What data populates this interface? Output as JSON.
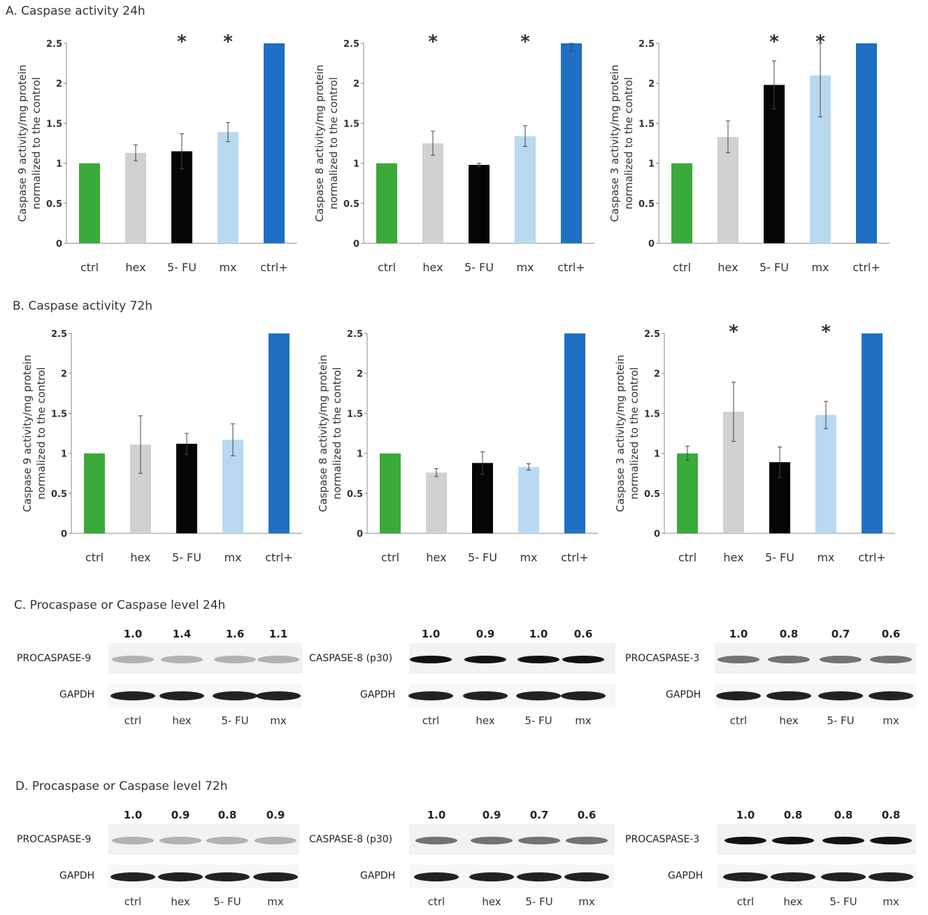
{
  "sections": {
    "a": "A. Caspase activity 24h",
    "b": "B. Caspase  activity 72h",
    "c": "C. Procaspase or Caspase level 24h",
    "d": "D. Procaspase  or Caspase level 72h"
  },
  "colors": {
    "ctrl": "#3aaa3a",
    "hex": "#d3d1d0",
    "fu": "#050505",
    "mx": "#b9d9f0",
    "ctrl_plus": "#1f6fc5"
  },
  "chart_data": [
    {
      "id": "a1",
      "type": "bar",
      "title": "",
      "ylabel_line1": "Caspase 9 activity/mg protein",
      "ylabel_line2": "normalized to the control",
      "categories": [
        "ctrl",
        "hex",
        "5- FU",
        "mx",
        "ctrl+"
      ],
      "values": [
        1.0,
        1.13,
        1.15,
        1.39,
        2.5
      ],
      "errors": [
        0,
        0.1,
        0.22,
        0.12,
        0
      ],
      "sig": [
        "",
        "",
        "*",
        "*",
        ""
      ],
      "ylim": [
        0,
        2.5
      ],
      "yticks": [
        "0",
        "0.5",
        "1",
        "1.5",
        "2",
        "2.5"
      ]
    },
    {
      "id": "a2",
      "type": "bar",
      "title": "",
      "ylabel_line1": "Caspase 8 activity/mg protein",
      "ylabel_line2": "normalized to the control",
      "categories": [
        "ctrl",
        "hex",
        "5- FU",
        "mx",
        "ctrl+"
      ],
      "values": [
        1.0,
        1.25,
        0.98,
        1.34,
        2.5
      ],
      "errors": [
        0,
        0.15,
        0.02,
        0.13,
        0.1
      ],
      "sig": [
        "",
        "*",
        "",
        "*",
        ""
      ],
      "ylim": [
        0,
        2.5
      ],
      "yticks": [
        "0",
        "0.5",
        "1",
        "1.5",
        "2",
        "2.5"
      ]
    },
    {
      "id": "a3",
      "type": "bar",
      "title": "",
      "ylabel_line1": "Caspase 3 activity/mg protein",
      "ylabel_line2": "normalized to the control",
      "categories": [
        "ctrl",
        "hex",
        "5- FU",
        "mx",
        "ctrl+"
      ],
      "values": [
        1.0,
        1.33,
        1.98,
        2.1,
        2.5
      ],
      "errors": [
        0,
        0.2,
        0.3,
        0.52,
        0
      ],
      "sig": [
        "",
        "",
        "*",
        "*",
        ""
      ],
      "ylim": [
        0,
        2.5
      ],
      "yticks": [
        "0",
        "0.5",
        "1",
        "1.5",
        "2",
        "2.5"
      ]
    },
    {
      "id": "b1",
      "type": "bar",
      "title": "",
      "ylabel_line1": "Caspase 9 activity/mg protein",
      "ylabel_line2": "normalized to the control",
      "categories": [
        "ctrl",
        "hex",
        "5- FU",
        "mx",
        "ctrl+"
      ],
      "values": [
        1.0,
        1.11,
        1.12,
        1.17,
        2.5
      ],
      "errors": [
        0,
        0.36,
        0.13,
        0.2,
        0
      ],
      "sig": [
        "",
        "",
        "",
        "",
        ""
      ],
      "ylim": [
        0,
        2.5
      ],
      "yticks": [
        "0",
        "0.5",
        "1",
        "1.5",
        "2",
        "2.5"
      ]
    },
    {
      "id": "b2",
      "type": "bar",
      "title": "",
      "ylabel_line1": "Caspase 8 activity/mg protein",
      "ylabel_line2": "normalized to the control",
      "categories": [
        "ctrl",
        "hex",
        "5- FU",
        "mx",
        "ctrl+"
      ],
      "values": [
        1.0,
        0.76,
        0.88,
        0.83,
        2.5
      ],
      "errors": [
        0,
        0.05,
        0.14,
        0.04,
        0
      ],
      "sig": [
        "",
        "",
        "",
        "",
        ""
      ],
      "ylim": [
        0,
        2.5
      ],
      "yticks": [
        "0",
        "0.5",
        "1",
        "1.5",
        "2",
        "2.5"
      ]
    },
    {
      "id": "b3",
      "type": "bar",
      "title": "",
      "ylabel_line1": "Caspase 3 activity/mg protein",
      "ylabel_line2": "normalized to the control",
      "categories": [
        "ctrl",
        "hex",
        "5- FU",
        "mx",
        "ctrl+"
      ],
      "values": [
        1.0,
        1.52,
        0.89,
        1.48,
        2.5
      ],
      "errors": [
        0.09,
        0.37,
        0.19,
        0.17,
        0
      ],
      "sig": [
        "",
        "*",
        "",
        "*",
        ""
      ],
      "ylim": [
        0,
        2.5
      ],
      "yticks": [
        "0",
        "0.5",
        "1",
        "1.5",
        "2",
        "2.5"
      ]
    }
  ],
  "blots": {
    "lanes": [
      "ctrl",
      "hex",
      "5- FU",
      "mx"
    ],
    "c1": {
      "label": "PROCASPASE-9",
      "densities": [
        "1.0",
        "1.4",
        "1.6",
        "1.1"
      ],
      "gapdh": "GAPDH"
    },
    "c2": {
      "label": "CASPASE-8 (p30)",
      "densities": [
        "1.0",
        "0.9",
        "1.0",
        "0.6"
      ],
      "gapdh": "GAPDH"
    },
    "c3": {
      "label": "PROCASPASE-3",
      "densities": [
        "1.0",
        "0.8",
        "0.7",
        "0.6"
      ],
      "gapdh": "GAPDH"
    },
    "d1": {
      "label": "PROCASPASE-9",
      "densities": [
        "1.0",
        "0.9",
        "0.8",
        "0.9"
      ],
      "gapdh": "GAPDH"
    },
    "d2": {
      "label": "CASPASE-8 (p30)",
      "densities": [
        "1.0",
        "0.9",
        "0.7",
        "0.6"
      ],
      "gapdh": "GAPDH"
    },
    "d3": {
      "label": "PROCASPASE-3",
      "densities": [
        "1.0",
        "0.8",
        "0.8",
        "0.8"
      ],
      "gapdh": "GAPDH"
    }
  }
}
